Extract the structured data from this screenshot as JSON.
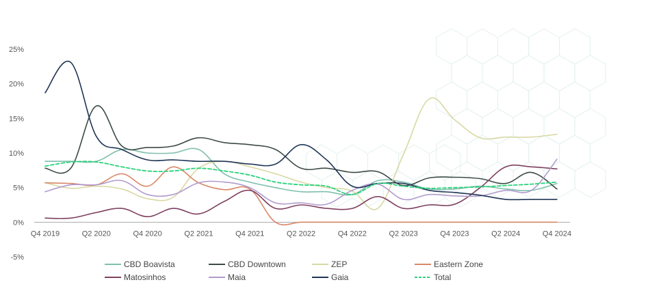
{
  "chart_data": {
    "type": "line",
    "title": "",
    "xlabel": "",
    "ylabel": "",
    "ylim": [
      -5,
      25
    ],
    "yticks": [
      25,
      20,
      15,
      10,
      5,
      0,
      -5
    ],
    "ytick_labels": [
      "25%",
      "20%",
      "15%",
      "10%",
      "5%",
      "0%",
      "-5%"
    ],
    "x": [
      "Q4 2019",
      "Q1 2020",
      "Q2 2020",
      "Q3 2020",
      "Q4 2020",
      "Q1 2021",
      "Q2 2021",
      "Q3 2021",
      "Q4 2021",
      "Q1 2022",
      "Q2 2022",
      "Q3 2022",
      "Q4 2022",
      "Q1 2023",
      "Q2 2023",
      "Q3 2023",
      "Q4 2023",
      "Q1 2024",
      "Q2 2024",
      "Q3 2024",
      "Q4 2024"
    ],
    "xtick_labels": [
      "Q4 2019",
      "Q2 2020",
      "Q4 2020",
      "Q2 2021",
      "Q4 2021",
      "Q2 2022",
      "Q4 2022",
      "Q2 2023",
      "Q4 2023",
      "Q2 2024",
      "Q4 2024"
    ],
    "grid": false,
    "legend_position": "bottom",
    "series": [
      {
        "name": "CBD Boavista",
        "color": "#7fbfad",
        "dash": false,
        "values": [
          8.8,
          8.8,
          8.8,
          10.5,
          10.0,
          10.0,
          10.5,
          7.0,
          5.8,
          5.0,
          4.4,
          4.4,
          4.0,
          6.0,
          5.8,
          4.8,
          4.8,
          5.2,
          4.8,
          4.6,
          5.6
        ]
      },
      {
        "name": "CBD Downtown",
        "color": "#3b4a45",
        "dash": false,
        "values": [
          7.8,
          7.8,
          16.8,
          11.0,
          10.8,
          11.0,
          12.2,
          11.5,
          11.2,
          10.5,
          7.8,
          7.8,
          7.2,
          7.3,
          5.3,
          6.4,
          6.5,
          6.3,
          5.6,
          7.2,
          4.8
        ]
      },
      {
        "name": "ZEP",
        "color": "#d8d8a4",
        "dash": false,
        "values": [
          5.7,
          4.9,
          5.2,
          4.8,
          3.4,
          3.6,
          7.8,
          8.8,
          8.0,
          7.0,
          5.8,
          5.0,
          4.5,
          2.0,
          9.8,
          17.8,
          14.8,
          12.2,
          12.3,
          12.3,
          12.7
        ]
      },
      {
        "name": "Eastern Zone",
        "color": "#d98767",
        "dash": false,
        "values": [
          5.7,
          5.6,
          5.4,
          7.0,
          5.2,
          8.0,
          5.7,
          4.7,
          4.8,
          0.0,
          0.0,
          0.0,
          0.0,
          0.0,
          0.0,
          0.0,
          0.0,
          0.0,
          0.0,
          0.0,
          0.0
        ]
      },
      {
        "name": "Matosinhos",
        "color": "#7e3f5e",
        "dash": false,
        "values": [
          0.6,
          0.6,
          1.4,
          2.0,
          0.8,
          2.0,
          1.2,
          3.0,
          4.6,
          2.0,
          2.5,
          2.0,
          2.0,
          3.7,
          2.0,
          2.5,
          2.6,
          5.0,
          8.0,
          8.0,
          7.7
        ]
      },
      {
        "name": "Maia",
        "color": "#b09acd",
        "dash": false,
        "values": [
          4.4,
          5.4,
          5.4,
          6.0,
          4.0,
          4.0,
          5.7,
          5.8,
          5.0,
          2.8,
          2.8,
          2.6,
          4.6,
          5.5,
          3.3,
          4.0,
          3.8,
          3.8,
          4.6,
          4.6,
          9.1
        ]
      },
      {
        "name": "Gaia",
        "color": "#1e3354",
        "dash": false,
        "values": [
          18.7,
          23.1,
          12.4,
          10.5,
          9.0,
          9.0,
          8.8,
          8.8,
          8.4,
          8.4,
          11.2,
          9.0,
          5.2,
          5.6,
          5.6,
          4.6,
          4.3,
          3.9,
          3.3,
          3.3,
          3.3
        ]
      },
      {
        "name": "Total",
        "color": "#2ad27a",
        "dash": true,
        "values": [
          8.1,
          8.7,
          8.7,
          8.0,
          7.4,
          7.4,
          7.8,
          7.4,
          6.8,
          5.8,
          5.4,
          5.2,
          4.0,
          5.6,
          5.2,
          4.9,
          5.0,
          5.1,
          5.3,
          5.5,
          5.8
        ]
      }
    ]
  }
}
